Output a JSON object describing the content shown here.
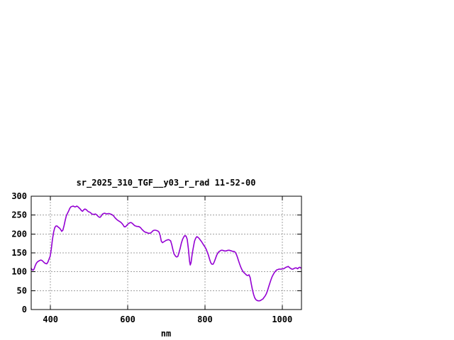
{
  "page": {
    "background": "#ffffff"
  },
  "chart_data": {
    "type": "line",
    "title": "sr_2025_310_TGF__y03_r_rad 11-52-00",
    "xlabel": "nm",
    "ylabel": "",
    "xlim": [
      350,
      1050
    ],
    "ylim": [
      0,
      300
    ],
    "x_ticks": [
      400,
      600,
      800,
      1000
    ],
    "y_ticks": [
      0,
      50,
      100,
      150,
      200,
      250,
      300
    ],
    "grid": true,
    "legend": false,
    "colors": {
      "line": "#9400d3",
      "grid": "#a0a0a0",
      "border": "#000000",
      "text": "#000000",
      "background": "#ffffff"
    },
    "series": [
      {
        "name": "sr_2025_310_TGF__y03_r_rad",
        "color": "#9400d3",
        "points": [
          [
            350,
            109
          ],
          [
            352,
            106
          ],
          [
            354,
            104
          ],
          [
            356,
            105
          ],
          [
            358,
            109
          ],
          [
            360,
            115
          ],
          [
            363,
            122
          ],
          [
            366,
            126
          ],
          [
            369,
            128
          ],
          [
            372,
            130
          ],
          [
            375,
            131
          ],
          [
            378,
            130
          ],
          [
            381,
            127
          ],
          [
            384,
            124
          ],
          [
            387,
            122
          ],
          [
            390,
            121
          ],
          [
            393,
            125
          ],
          [
            396,
            133
          ],
          [
            399,
            141
          ],
          [
            402,
            160
          ],
          [
            405,
            185
          ],
          [
            408,
            205
          ],
          [
            411,
            217
          ],
          [
            414,
            221
          ],
          [
            417,
            221
          ],
          [
            420,
            218
          ],
          [
            423,
            216
          ],
          [
            426,
            212
          ],
          [
            429,
            207
          ],
          [
            432,
            210
          ],
          [
            435,
            222
          ],
          [
            438,
            236
          ],
          [
            441,
            248
          ],
          [
            444,
            255
          ],
          [
            447,
            261
          ],
          [
            450,
            268
          ],
          [
            453,
            272
          ],
          [
            456,
            273
          ],
          [
            459,
            274
          ],
          [
            462,
            272
          ],
          [
            465,
            272
          ],
          [
            468,
            274
          ],
          [
            471,
            272
          ],
          [
            474,
            269
          ],
          [
            477,
            266
          ],
          [
            480,
            262
          ],
          [
            483,
            260
          ],
          [
            486,
            264
          ],
          [
            489,
            266
          ],
          [
            492,
            265
          ],
          [
            495,
            262
          ],
          [
            498,
            259
          ],
          [
            501,
            258
          ],
          [
            504,
            256
          ],
          [
            507,
            253
          ],
          [
            510,
            252
          ],
          [
            513,
            252
          ],
          [
            516,
            253
          ],
          [
            519,
            251
          ],
          [
            522,
            248
          ],
          [
            525,
            245
          ],
          [
            528,
            244
          ],
          [
            531,
            247
          ],
          [
            534,
            252
          ],
          [
            537,
            254
          ],
          [
            540,
            255
          ],
          [
            543,
            254
          ],
          [
            546,
            253
          ],
          [
            549,
            254
          ],
          [
            552,
            254
          ],
          [
            555,
            253
          ],
          [
            558,
            252
          ],
          [
            561,
            250
          ],
          [
            564,
            247
          ],
          [
            567,
            243
          ],
          [
            570,
            240
          ],
          [
            573,
            237
          ],
          [
            576,
            235
          ],
          [
            579,
            233
          ],
          [
            582,
            231
          ],
          [
            585,
            228
          ],
          [
            588,
            224
          ],
          [
            591,
            219
          ],
          [
            594,
            219
          ],
          [
            597,
            222
          ],
          [
            600,
            226
          ],
          [
            603,
            228
          ],
          [
            606,
            230
          ],
          [
            609,
            230
          ],
          [
            612,
            228
          ],
          [
            615,
            225
          ],
          [
            618,
            222
          ],
          [
            621,
            221
          ],
          [
            624,
            220
          ],
          [
            627,
            220
          ],
          [
            630,
            219
          ],
          [
            633,
            217
          ],
          [
            636,
            213
          ],
          [
            639,
            210
          ],
          [
            642,
            207
          ],
          [
            645,
            205
          ],
          [
            648,
            204
          ],
          [
            651,
            203
          ],
          [
            654,
            202
          ],
          [
            657,
            202
          ],
          [
            660,
            203
          ],
          [
            663,
            206
          ],
          [
            666,
            209
          ],
          [
            669,
            210
          ],
          [
            672,
            210
          ],
          [
            675,
            209
          ],
          [
            678,
            208
          ],
          [
            681,
            205
          ],
          [
            684,
            196
          ],
          [
            687,
            181
          ],
          [
            690,
            177
          ],
          [
            693,
            179
          ],
          [
            696,
            181
          ],
          [
            699,
            183
          ],
          [
            702,
            184
          ],
          [
            705,
            185
          ],
          [
            708,
            184
          ],
          [
            711,
            182
          ],
          [
            714,
            172
          ],
          [
            717,
            158
          ],
          [
            720,
            147
          ],
          [
            724,
            141
          ],
          [
            727,
            139
          ],
          [
            730,
            141
          ],
          [
            733,
            152
          ],
          [
            736,
            163
          ],
          [
            739,
            176
          ],
          [
            742,
            186
          ],
          [
            745,
            192
          ],
          [
            748,
            196
          ],
          [
            751,
            194
          ],
          [
            754,
            186
          ],
          [
            757,
            162
          ],
          [
            760,
            128
          ],
          [
            762,
            118
          ],
          [
            764,
            124
          ],
          [
            767,
            148
          ],
          [
            770,
            165
          ],
          [
            773,
            181
          ],
          [
            776,
            189
          ],
          [
            779,
            193
          ],
          [
            782,
            191
          ],
          [
            785,
            188
          ],
          [
            788,
            184
          ],
          [
            791,
            180
          ],
          [
            794,
            175
          ],
          [
            797,
            170
          ],
          [
            800,
            166
          ],
          [
            803,
            160
          ],
          [
            806,
            152
          ],
          [
            809,
            144
          ],
          [
            812,
            133
          ],
          [
            815,
            124
          ],
          [
            818,
            120
          ],
          [
            821,
            120
          ],
          [
            824,
            126
          ],
          [
            827,
            134
          ],
          [
            830,
            143
          ],
          [
            833,
            149
          ],
          [
            836,
            153
          ],
          [
            839,
            155
          ],
          [
            842,
            157
          ],
          [
            845,
            157
          ],
          [
            848,
            156
          ],
          [
            851,
            155
          ],
          [
            854,
            155
          ],
          [
            857,
            156
          ],
          [
            860,
            157
          ],
          [
            863,
            157
          ],
          [
            866,
            156
          ],
          [
            869,
            155
          ],
          [
            872,
            154
          ],
          [
            875,
            154
          ],
          [
            878,
            152
          ],
          [
            881,
            147
          ],
          [
            884,
            139
          ],
          [
            887,
            129
          ],
          [
            890,
            120
          ],
          [
            893,
            112
          ],
          [
            896,
            105
          ],
          [
            899,
            100
          ],
          [
            902,
            97
          ],
          [
            905,
            94
          ],
          [
            908,
            91
          ],
          [
            911,
            90
          ],
          [
            914,
            92
          ],
          [
            917,
            85
          ],
          [
            920,
            68
          ],
          [
            923,
            52
          ],
          [
            926,
            40
          ],
          [
            929,
            31
          ],
          [
            932,
            26
          ],
          [
            935,
            24
          ],
          [
            938,
            23
          ],
          [
            941,
            23
          ],
          [
            944,
            24
          ],
          [
            947,
            26
          ],
          [
            950,
            28
          ],
          [
            953,
            32
          ],
          [
            956,
            36
          ],
          [
            959,
            42
          ],
          [
            962,
            50
          ],
          [
            965,
            60
          ],
          [
            968,
            70
          ],
          [
            971,
            79
          ],
          [
            974,
            87
          ],
          [
            977,
            93
          ],
          [
            980,
            98
          ],
          [
            983,
            102
          ],
          [
            986,
            105
          ],
          [
            989,
            106
          ],
          [
            992,
            107
          ],
          [
            995,
            107
          ],
          [
            998,
            107
          ],
          [
            1001,
            108
          ],
          [
            1004,
            108
          ],
          [
            1007,
            110
          ],
          [
            1010,
            112
          ],
          [
            1013,
            113
          ],
          [
            1016,
            114
          ],
          [
            1019,
            111
          ],
          [
            1022,
            109
          ],
          [
            1025,
            107
          ],
          [
            1028,
            107
          ],
          [
            1031,
            109
          ],
          [
            1034,
            110
          ],
          [
            1037,
            110
          ],
          [
            1040,
            108
          ],
          [
            1043,
            111
          ],
          [
            1046,
            112
          ],
          [
            1048,
            110
          ]
        ]
      }
    ]
  }
}
